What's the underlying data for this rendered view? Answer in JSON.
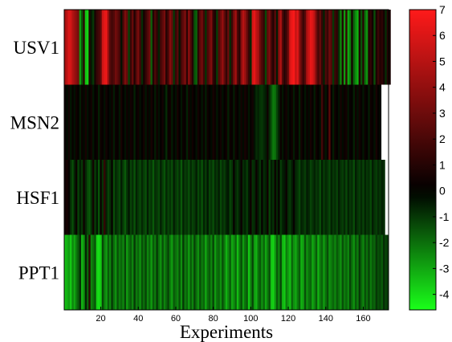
{
  "chart_data": {
    "type": "heatmap",
    "title": "",
    "xlabel": "Experiments",
    "ylabel": "",
    "rows": [
      "USV1",
      "MSN2",
      "HSF1",
      "PPT1"
    ],
    "x_range": [
      1,
      173
    ],
    "x_ticks": [
      20,
      40,
      60,
      80,
      100,
      120,
      140,
      160
    ],
    "colorbar": {
      "range": [
        -4.6,
        7
      ],
      "ticks": [
        7,
        6,
        5,
        4,
        3,
        2,
        1,
        0,
        -1,
        -2,
        -3,
        -4
      ],
      "low_color": "#1aff1a",
      "mid_color": "#000000",
      "high_color": "#ff1a1a"
    },
    "series": [
      {
        "name": "USV1",
        "values": [
          4.5,
          5.2,
          6.0,
          5.8,
          4.9,
          4.3,
          3.8,
          3.2,
          -2.8,
          -1.5,
          1.2,
          -3.5,
          -3.8,
          0.8,
          -0.5,
          -1.0,
          0.7,
          1.5,
          1.8,
          2.5,
          5.6,
          6.2,
          6.5,
          4.1,
          2.3,
          1.8,
          2.2,
          3.1,
          2.6,
          1.9,
          -0.3,
          2.0,
          3.4,
          2.7,
          -1.2,
          1.5,
          2.8,
          0.9,
          2.4,
          3.3,
          1.7,
          -0.8,
          0.6,
          1.4,
          2.2,
          3.0,
          -1.8,
          0.9,
          2.1,
          1.2,
          -0.6,
          1.8,
          2.5,
          3.2,
          1.0,
          2.0,
          3.6,
          2.8,
          -1.0,
          1.5,
          2.4,
          -0.4,
          1.9,
          2.6,
          3.4,
          1.2,
          3.8,
          2.2,
          1.0,
          -1.4,
          -1.8,
          1.2,
          2.5,
          3.1,
          1.7,
          -0.9,
          2.0,
          2.8,
          3.5,
          1.3,
          0.8,
          -1.1,
          2.2,
          3.0,
          4.1,
          2.6,
          1.4,
          2.9,
          -0.8,
          1.6,
          3.3,
          4.4,
          2.0,
          1.1,
          3.7,
          5.0,
          4.2,
          2.8,
          1.5,
          -0.7,
          5.8,
          6.3,
          5.2,
          4.6,
          3.0,
          2.1,
          1.4,
          -1.3,
          2.6,
          3.4,
          1.8,
          0.9,
          2.5,
          -0.5,
          3.6,
          4.8,
          2.2,
          1.0,
          1.7,
          2.9,
          5.9,
          6.5,
          6.8,
          5.4,
          6.1,
          4.0,
          2.6,
          1.5,
          2.3,
          4.7,
          5.5,
          6.4,
          6.0,
          5.0,
          3.2,
          1.9,
          2.8,
          1.4,
          -0.6,
          2.1,
          1.5,
          3.0,
          2.2,
          -1.0,
          1.6,
          1.2,
          -0.8,
          -2.4,
          0.9,
          -2.8,
          1.4,
          -3.0,
          -2.2,
          0.6,
          -1.8,
          -2.5,
          -3.2,
          0.8,
          -1.5,
          1.1,
          -2.0,
          -2.6,
          0.9,
          1.3,
          0.5,
          -1.4,
          0.8,
          1.6,
          0.9,
          1.2,
          0.6,
          -0.8,
          1.0,
          0.7
        ]
      },
      {
        "name": "MSN2",
        "values": [
          0.3,
          -0.2,
          0.5,
          -0.4,
          0.2,
          -0.3,
          0.4,
          0.1,
          -0.5,
          0.3,
          -0.2,
          0.6,
          -0.3,
          0.2,
          0.5,
          -0.4,
          0.1,
          0.3,
          -0.6,
          0.4,
          0.2,
          -0.3,
          0.5,
          0.1,
          -0.2,
          0.4,
          -0.5,
          0.3,
          0.2,
          -0.4,
          0.6,
          0.1,
          -0.3,
          0.4,
          -0.2,
          0.5,
          0.3,
          -0.6,
          0.2,
          0.4,
          -0.3,
          0.1,
          0.5,
          -0.4,
          0.3,
          -0.2,
          0.6,
          0.2,
          -0.5,
          0.4,
          -0.3,
          0.1,
          0.5,
          -0.2,
          -0.8,
          0.3,
          0.4,
          -0.5,
          0.2,
          -0.3,
          0.6,
          0.1,
          -0.4,
          0.3,
          0.2,
          -0.6,
          0.5,
          -0.2,
          0.4,
          0.1,
          -0.3,
          0.5,
          0.2,
          -0.4,
          0.3,
          -0.5,
          0.4,
          0.1,
          -0.2,
          0.6,
          0.3,
          -0.4,
          0.2,
          0.5,
          -0.3,
          0.1,
          0.4,
          -0.6,
          0.3,
          0.2,
          -0.5,
          0.4,
          0.1,
          -0.3,
          0.5,
          -0.2,
          0.6,
          0.3,
          -0.4,
          0.2,
          0.5,
          -0.3,
          -0.8,
          -0.6,
          -0.9,
          -1.0,
          -0.7,
          -0.5,
          0.4,
          -0.8,
          -1.5,
          -2.2,
          -2.0,
          -1.2,
          -0.6,
          0.3,
          -0.4,
          0.2,
          0.5,
          -0.3,
          0.1,
          0.4,
          -0.5,
          0.3,
          0.2,
          -0.6,
          0.5,
          0.1,
          -0.4,
          0.3,
          -0.2,
          0.6,
          0.2,
          -0.5,
          0.4,
          0.1,
          -0.3,
          1.8,
          0.5,
          -0.4,
          0.3,
          2.5,
          0.2,
          -0.5,
          0.4,
          0.1,
          -0.3,
          0.6,
          -0.2,
          0.3,
          0.5,
          -0.4,
          0.2,
          0.1,
          -0.6,
          0.4,
          -0.3,
          0.5,
          0.2,
          -0.4,
          0.3,
          0.1,
          -0.5,
          0.4,
          0.2,
          -0.3,
          0.6,
          0.1,
          -0.2
        ]
      },
      {
        "name": "HSF1",
        "values": [
          0.4,
          0.6,
          0.2,
          -0.8,
          -1.4,
          -0.6,
          0.3,
          -1.2,
          -0.5,
          -1.0,
          0.4,
          -0.7,
          -1.3,
          -1.6,
          -0.8,
          0.5,
          -1.1,
          -0.4,
          -1.5,
          0.3,
          -0.9,
          1.4,
          -0.6,
          -1.2,
          -0.8,
          0.2,
          -1.4,
          -0.7,
          -1.0,
          -1.3,
          -0.5,
          -1.1,
          -1.6,
          -0.9,
          -0.4,
          -1.2,
          -0.8,
          -1.5,
          -0.6,
          -1.0,
          -1.3,
          -0.7,
          -1.1,
          -1.4,
          -0.5,
          -1.2,
          -0.9,
          -1.6,
          -0.8,
          -1.0,
          -1.3,
          -0.6,
          -1.1,
          -1.5,
          -0.7,
          -1.2,
          -0.9,
          -1.4,
          -0.5,
          -1.0,
          -1.3,
          -0.8,
          -1.6,
          -0.6,
          -1.1,
          -0.9,
          -1.4,
          -0.7,
          -1.2,
          -1.0,
          -0.5,
          -1.3,
          -0.8,
          -1.5,
          -0.6,
          -1.1,
          -0.4,
          -1.2,
          -0.9,
          -1.4,
          -0.7,
          -1.0,
          -0.5,
          -1.3,
          -0.8,
          -1.1,
          -0.6,
          -0.4,
          -1.2,
          -0.9,
          0.2,
          -0.7,
          -1.0,
          -0.5,
          0.3,
          -0.8,
          -0.6,
          -1.1,
          -0.4,
          0.4,
          -0.9,
          -0.7,
          0.3,
          -0.5,
          -1.0,
          0.2,
          -0.8,
          -0.6,
          0.4,
          -1.2,
          -0.5,
          -0.9,
          0.3,
          -0.7,
          0.2,
          -1.1,
          -0.6,
          -0.4,
          0.3,
          -0.8,
          -1.0,
          -0.5,
          0.2,
          -0.7,
          -0.9,
          -1.3,
          -0.6,
          -0.8,
          -1.1,
          -0.5,
          -0.7,
          -1.2,
          -0.9,
          -0.6,
          -1.0,
          -0.8,
          -1.4,
          -0.5,
          -1.1,
          -0.7,
          -0.9,
          -1.3,
          -0.6,
          -1.0,
          -0.8,
          -1.2,
          -0.5,
          -0.9,
          -1.1,
          -0.7,
          -1.3,
          -0.6,
          -1.0,
          -0.8,
          -1.4,
          -0.5,
          -0.9,
          -1.1,
          -0.7,
          -1.2,
          -0.6,
          -1.0,
          -0.8,
          -1.3,
          -0.5,
          -0.9,
          -1.1,
          -0.7,
          -1.0,
          -0.6,
          -0.8
        ]
      },
      {
        "name": "PPT1",
        "values": [
          -3.5,
          -3.2,
          -2.8,
          -3.6,
          -2.4,
          -3.0,
          -2.2,
          -1.6,
          -0.8,
          -3.2,
          -2.6,
          -0.6,
          -1.8,
          1.2,
          -2.4,
          -2.0,
          -1.5,
          -3.8,
          -4.0,
          -3.6,
          -1.2,
          -2.2,
          -2.8,
          -1.6,
          -2.4,
          -1.0,
          -2.0,
          -2.6,
          -1.4,
          -2.2,
          -1.8,
          -2.4,
          -1.2,
          -2.8,
          -2.0,
          -1.6,
          -2.4,
          -1.0,
          -2.2,
          -1.8,
          -2.6,
          -1.4,
          -2.0,
          -1.2,
          -2.4,
          -1.8,
          -2.8,
          -1.6,
          -2.2,
          -1.0,
          -2.0,
          -2.6,
          -1.4,
          -2.4,
          -1.8,
          -1.2,
          -2.2,
          -2.8,
          -1.6,
          -2.0,
          -2.4,
          -1.4,
          -2.6,
          -1.0,
          -2.2,
          -1.8,
          -2.8,
          -1.6,
          -2.4,
          -1.2,
          -2.0,
          -2.6,
          -1.4,
          -2.2,
          -1.8,
          -3.0,
          -2.0,
          -1.6,
          -2.4,
          -1.2,
          -2.8,
          -2.0,
          -1.8,
          -2.6,
          -1.4,
          -2.2,
          -3.2,
          -2.4,
          -1.6,
          -3.0,
          -2.6,
          -1.8,
          -3.4,
          -2.2,
          -1.4,
          -2.8,
          -2.0,
          -1.6,
          -3.6,
          -2.4,
          -1.2,
          -2.8,
          -3.2,
          -2.0,
          -1.6,
          -2.6,
          -1.8,
          -3.0,
          -2.2,
          -1.4,
          -3.5,
          -3.8,
          -2.8,
          -1.6,
          -2.4,
          -1.2,
          -3.2,
          -3.6,
          -2.2,
          -2.8,
          -3.4,
          -1.8,
          -2.6,
          -3.0,
          -2.2,
          -1.6,
          -3.2,
          -2.8,
          -1.4,
          -2.6,
          -2.0,
          -1.8,
          -3.0,
          -2.4,
          -1.6,
          -3.2,
          -2.2,
          -1.8,
          -2.8,
          -2.0,
          -1.4,
          -2.6,
          -2.2,
          -1.8,
          -2.4,
          -1.6,
          -2.0,
          -2.6,
          -1.4,
          -2.2,
          -1.8,
          -2.4,
          -1.2,
          -2.0,
          -2.6,
          -1.6,
          -2.2,
          -1.0,
          -1.8,
          -2.4,
          -1.4,
          -2.0,
          -1.2,
          -2.2,
          -1.6,
          -1.8,
          -1.0,
          -1.4,
          -1.2,
          -1.6,
          -0.8,
          -1.2,
          -1.0
        ]
      }
    ]
  }
}
